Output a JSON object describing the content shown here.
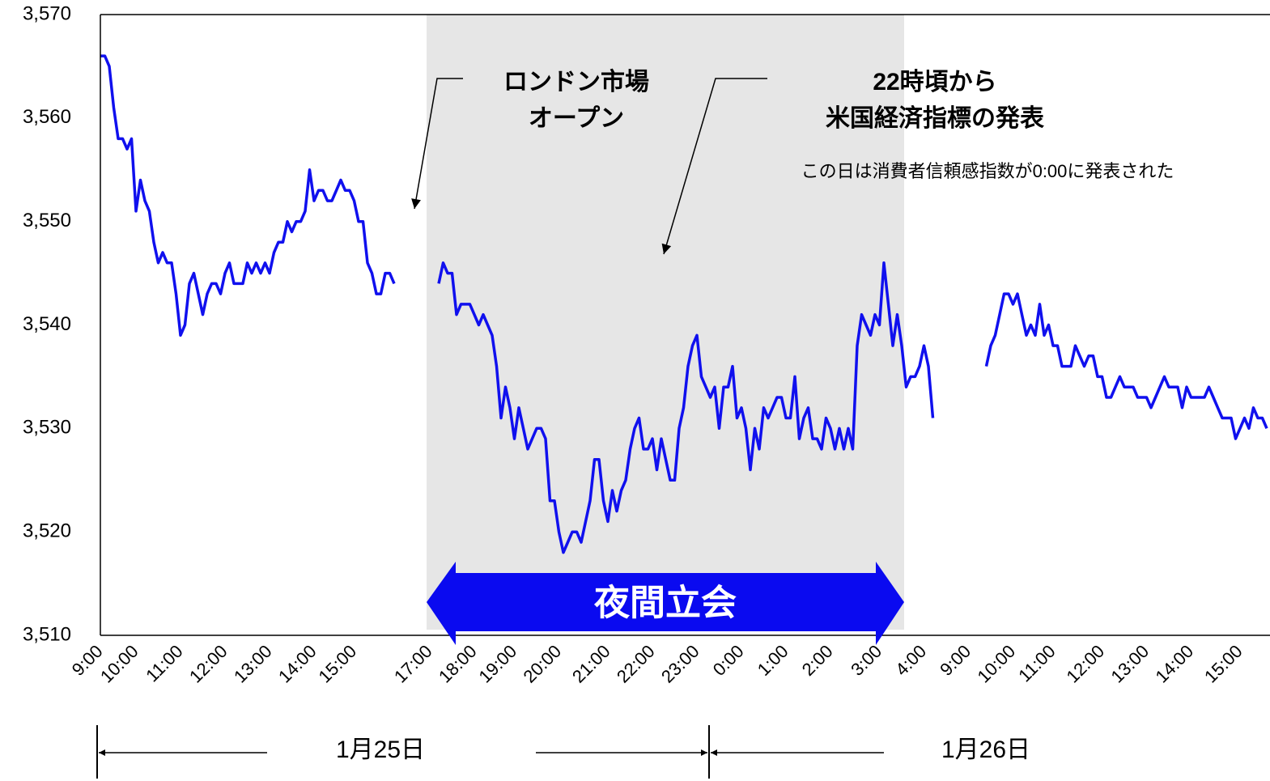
{
  "chart_data": {
    "type": "line",
    "categories": [
      "9:00",
      null,
      null,
      null,
      null,
      null,
      null,
      null,
      "10:00",
      null,
      null,
      null,
      null,
      null,
      null,
      null,
      null,
      null,
      "11:00",
      null,
      null,
      null,
      null,
      null,
      null,
      null,
      null,
      null,
      "12:00",
      null,
      null,
      null,
      null,
      null,
      null,
      null,
      null,
      null,
      "13:00",
      null,
      null,
      null,
      null,
      null,
      null,
      null,
      null,
      null,
      "14:00",
      null,
      null,
      null,
      null,
      null,
      null,
      null,
      null,
      "15:00",
      null,
      null,
      null,
      null,
      null,
      null,
      null,
      null,
      null,
      null,
      null,
      null,
      null,
      null,
      null,
      null,
      "17:00",
      null,
      null,
      null,
      null,
      null,
      null,
      null,
      null,
      null,
      "18:00",
      null,
      null,
      null,
      null,
      null,
      null,
      null,
      null,
      "19:00",
      null,
      null,
      null,
      null,
      null,
      null,
      null,
      null,
      null,
      "20:00",
      null,
      null,
      null,
      null,
      null,
      null,
      null,
      null,
      null,
      null,
      "21:00",
      null,
      null,
      null,
      null,
      null,
      null,
      null,
      null,
      null,
      "22:00",
      null,
      null,
      null,
      null,
      null,
      null,
      null,
      null,
      null,
      "23:00",
      null,
      null,
      null,
      null,
      null,
      null,
      null,
      null,
      null,
      "0:00",
      null,
      null,
      null,
      null,
      null,
      null,
      null,
      null,
      null,
      "1:00",
      null,
      null,
      null,
      null,
      null,
      null,
      null,
      null,
      null,
      "2:00",
      null,
      null,
      null,
      null,
      null,
      null,
      null,
      null,
      null,
      null,
      "3:00",
      null,
      null,
      null,
      null,
      null,
      null,
      null,
      null,
      null,
      "4:00",
      null,
      null,
      null,
      null,
      null,
      null,
      null,
      null,
      null,
      "9:00",
      null,
      null,
      null,
      null,
      null,
      null,
      null,
      null,
      null,
      "10:00",
      null,
      null,
      null,
      null,
      null,
      null,
      null,
      null,
      "11:00",
      null,
      null,
      null,
      null,
      null,
      null,
      null,
      null,
      null,
      null,
      "12:00",
      null,
      null,
      null,
      null,
      null,
      null,
      null,
      null,
      null,
      "13:00",
      null,
      null,
      null,
      null,
      null,
      null,
      null,
      null,
      null,
      "14:00",
      null,
      null,
      null,
      null,
      null,
      null,
      null,
      null,
      null,
      null,
      "15:00",
      null,
      null,
      null,
      null,
      null,
      null
    ],
    "series": [
      {
        "color": "#1010ee",
        "values": [
          3566,
          3566,
          3565,
          3561,
          3558,
          3558,
          3557,
          3558,
          3551,
          3554,
          3552,
          3551,
          3548,
          3546,
          3547,
          3546,
          3546,
          3543,
          3539,
          3540,
          3544,
          3545,
          3543,
          3541,
          3543,
          3544,
          3544,
          3543,
          3545,
          3546,
          3544,
          3544,
          3544,
          3546,
          3545,
          3546,
          3545,
          3546,
          3545,
          3547,
          3548,
          3548,
          3550,
          3549,
          3550,
          3550,
          3551,
          3555,
          3552,
          3553,
          3553,
          3552,
          3552,
          3553,
          3554,
          3553,
          3553,
          3552,
          3550,
          3550,
          3546,
          3545,
          3543,
          3543,
          3545,
          3545,
          3544,
          null,
          null,
          null,
          null,
          null,
          null,
          null,
          null,
          null,
          3544,
          3546,
          3545,
          3545,
          3541,
          3542,
          3542,
          3542,
          3541,
          3540,
          3541,
          3540,
          3539,
          3536,
          3531,
          3534,
          3532,
          3529,
          3532,
          3530,
          3528,
          3529,
          3530,
          3530,
          3529,
          3523,
          3523,
          3520,
          3518,
          3519,
          3520,
          3520,
          3519,
          3521,
          3523,
          3527,
          3527,
          3523,
          3521,
          3524,
          3522,
          3524,
          3525,
          3528,
          3530,
          3531,
          3528,
          3528,
          3529,
          3526,
          3529,
          3527,
          3525,
          3525,
          3530,
          3532,
          3536,
          3538,
          3539,
          3535,
          3534,
          3533,
          3534,
          3530,
          3534,
          3534,
          3536,
          3531,
          3532,
          3530,
          3526,
          3530,
          3528,
          3532,
          3531,
          3532,
          3533,
          3533,
          3531,
          3531,
          3535,
          3529,
          3531,
          3532,
          3529,
          3529,
          3528,
          3531,
          3530,
          3528,
          3530,
          3528,
          3530,
          3528,
          3538,
          3541,
          3540,
          3539,
          3541,
          3540,
          3546,
          3542,
          3538,
          3541,
          3538,
          3534,
          3535,
          3535,
          3536,
          3538,
          3536,
          3531,
          null,
          null,
          null,
          null,
          null,
          null,
          null,
          null,
          null,
          null,
          null,
          3536,
          3538,
          3539,
          3541,
          3543,
          3543,
          3542,
          3543,
          3541,
          3539,
          3540,
          3539,
          3542,
          3539,
          3540,
          3538,
          3538,
          3536,
          3536,
          3536,
          3538,
          3537,
          3536,
          3537,
          3537,
          3535,
          3535,
          3533,
          3533,
          3534,
          3535,
          3534,
          3534,
          3534,
          3533,
          3533,
          3533,
          3532,
          3533,
          3534,
          3535,
          3534,
          3534,
          3534,
          3532,
          3534,
          3533,
          3533,
          3533,
          3533,
          3534,
          3533,
          3532,
          3531,
          3531,
          3531,
          3529,
          3530,
          3531,
          3530,
          3532,
          3531,
          3531,
          3530
        ]
      }
    ],
    "ylim": [
      3510,
      3570
    ],
    "yticks": [
      {
        "value": 3510,
        "label": "3,510"
      },
      {
        "value": 3520,
        "label": "3,520"
      },
      {
        "value": 3530,
        "label": "3,530"
      },
      {
        "value": 3540,
        "label": "3,540"
      },
      {
        "value": 3550,
        "label": "3,550"
      },
      {
        "value": 3560,
        "label": "3,560"
      },
      {
        "value": 3570,
        "label": "3,570"
      }
    ],
    "grid": false,
    "annotations": [
      {
        "lines": [
          "ロンドン市場",
          "オープン"
        ]
      },
      {
        "lines": [
          "22時頃から",
          "米国経済指標の発表"
        ]
      },
      {
        "lines": [
          "この日は消費者信頼感指数が0:00に発表された"
        ]
      },
      {
        "lines": [
          "夜間立会"
        ]
      }
    ],
    "date_labels": [
      "1月25日",
      "1月26日"
    ]
  }
}
